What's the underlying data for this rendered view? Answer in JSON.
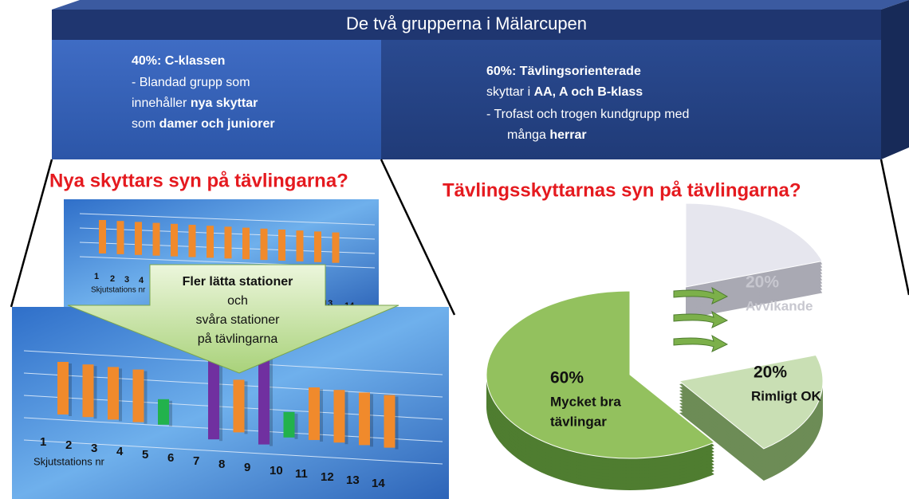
{
  "header": {
    "title": "De två grupperna i Mälarcupen"
  },
  "left_group": {
    "heading": "40%: C-klassen",
    "line1": "- Blandad grupp som",
    "line2a": "innehåller ",
    "line2b": "nya skyttar",
    "line3a": "som ",
    "line3b": "damer och juniorer"
  },
  "right_group": {
    "heading": "60%:  Tävlingsorienterade",
    "line1a": "skyttar  i ",
    "line1b": "AA, A och B-klass",
    "line2": "-   Trofast och trogen kundgrupp med",
    "line3a": "många ",
    "line3b": "herrar"
  },
  "left_question": "Nya skyttars syn på tävlingarna?",
  "right_question": "Tävlingsskyttarnas syn på tävlingarna?",
  "top_chart": {
    "stations": [
      1,
      2,
      3,
      4,
      13,
      14
    ],
    "axis_label": "Skjutstations nr"
  },
  "bottom_chart": {
    "stations": [
      1,
      2,
      3,
      4,
      5,
      6,
      7,
      8,
      9,
      10,
      11,
      12,
      13,
      14
    ],
    "axis_label": "Skjutstations nr"
  },
  "arrow": {
    "lines": [
      "Fler lätta stationer",
      "och",
      "svåra stationer",
      "på tävlingarna"
    ]
  },
  "pie": {
    "type": "pie",
    "values": [
      60,
      20,
      20
    ],
    "value_labels": [
      "60%",
      "20%",
      "20%"
    ],
    "labels": [
      [
        "Mycket bra",
        "tävlingar"
      ],
      [
        "Avvikande"
      ],
      [
        "Rimligt OK"
      ]
    ],
    "colors": [
      "#93c15e",
      "#e6e6ee",
      "#c9dfb4"
    ]
  }
}
